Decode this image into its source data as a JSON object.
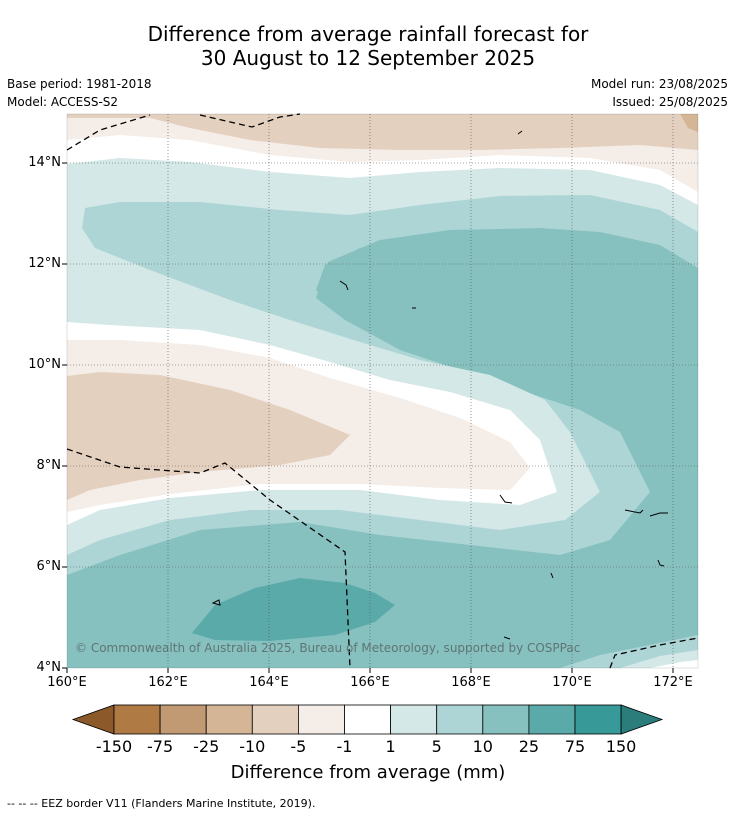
{
  "title": {
    "line1": "Difference from average rainfall forecast for",
    "line2": "30 August to 12 September 2025"
  },
  "meta": {
    "base_period": "Base period: 1981-2018",
    "model": "Model: ACCESS-S2",
    "model_run": "Model run: 23/08/2025",
    "issued": "Issued: 25/08/2025"
  },
  "map": {
    "lat_labels": [
      "14°N",
      "12°N",
      "10°N",
      "8°N",
      "6°N",
      "4°N"
    ],
    "lon_labels": [
      "160°E",
      "162°E",
      "164°E",
      "166°E",
      "168°E",
      "170°E",
      "172°E"
    ],
    "copyright": "© Commonwealth of Australia 2025, Bureau of Meteorology, supported by COSPPac",
    "grid": true
  },
  "colorbar": {
    "title": "Difference from average (mm)",
    "ticks": [
      "-150",
      "-75",
      "-25",
      "-10",
      "-5",
      "-1",
      "1",
      "5",
      "10",
      "25",
      "75",
      "150"
    ],
    "colors": {
      "below_-150": "#8c5a2a",
      "-150_-75": "#b07a45",
      "-75_-25": "#c19a74",
      "-25_-10": "#d4b596",
      "-10_-5": "#e4d0bf",
      "-5_-1": "#f4ede8",
      "-1_1": "#ffffff",
      "1_5": "#d3e8e7",
      "5_10": "#add5d5",
      "10_25": "#86c1c0",
      "25_75": "#5aaaa9",
      "75_150": "#379a98",
      "above_150": "#2a7d7b"
    }
  },
  "footnote": "--  --  -- EEZ border V11 (Flanders Marine Institute, 2019)."
}
